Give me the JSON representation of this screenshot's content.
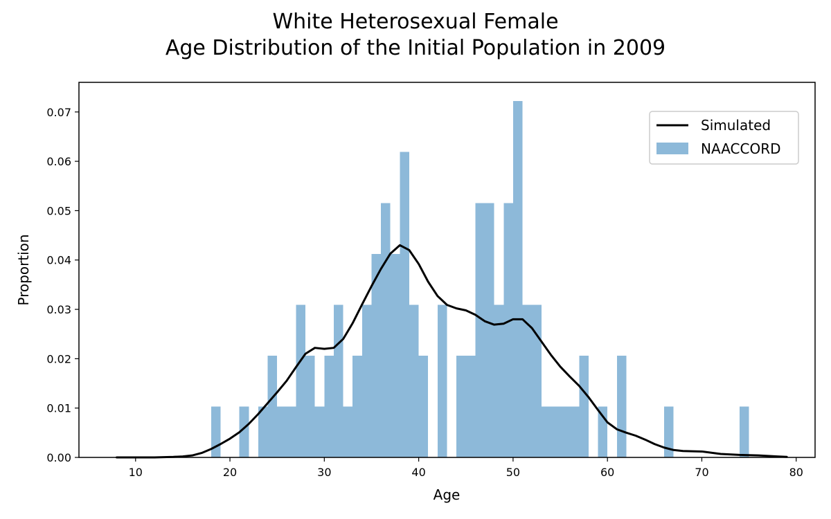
{
  "chart_data": {
    "type": "bar",
    "title": "White Heterosexual Female",
    "subtitle": "Age Distribution of the Initial Population in 2009",
    "xlabel": "Age",
    "ylabel": "Proportion",
    "xlim": [
      4,
      82
    ],
    "ylim": [
      0,
      0.076
    ],
    "xticks": [
      10,
      20,
      30,
      40,
      50,
      60,
      70,
      80
    ],
    "yticks": [
      0.0,
      0.01,
      0.02,
      0.03,
      0.04,
      0.05,
      0.06,
      0.07
    ],
    "xtick_labels": [
      "10",
      "20",
      "30",
      "40",
      "50",
      "60",
      "70",
      "80"
    ],
    "ytick_labels": [
      "0.00",
      "0.01",
      "0.02",
      "0.03",
      "0.04",
      "0.05",
      "0.06",
      "0.07"
    ],
    "grid": false,
    "legend_position": "top-right",
    "series": [
      {
        "name": "NAACCORD",
        "type": "histogram",
        "color": "#8db9d9",
        "bin_width": 1,
        "bins": [
          [
            18,
            0.0103
          ],
          [
            21,
            0.0103
          ],
          [
            23,
            0.0103
          ],
          [
            24,
            0.0206
          ],
          [
            25,
            0.0103
          ],
          [
            26,
            0.0103
          ],
          [
            27,
            0.0309
          ],
          [
            28,
            0.0206
          ],
          [
            29,
            0.0103
          ],
          [
            30,
            0.0206
          ],
          [
            31,
            0.0309
          ],
          [
            32,
            0.0103
          ],
          [
            33,
            0.0206
          ],
          [
            34,
            0.0309
          ],
          [
            35,
            0.0412
          ],
          [
            36,
            0.0515
          ],
          [
            37,
            0.0412
          ],
          [
            38,
            0.0619
          ],
          [
            39,
            0.0309
          ],
          [
            40,
            0.0206
          ],
          [
            42,
            0.0309
          ],
          [
            44,
            0.0206
          ],
          [
            45,
            0.0206
          ],
          [
            46,
            0.0515
          ],
          [
            47,
            0.0515
          ],
          [
            48,
            0.0309
          ],
          [
            49,
            0.0515
          ],
          [
            50,
            0.0722
          ],
          [
            51,
            0.0309
          ],
          [
            52,
            0.0309
          ],
          [
            53,
            0.0103
          ],
          [
            54,
            0.0103
          ],
          [
            55,
            0.0103
          ],
          [
            56,
            0.0103
          ],
          [
            57,
            0.0206
          ],
          [
            59,
            0.0103
          ],
          [
            61,
            0.0206
          ],
          [
            66,
            0.0103
          ],
          [
            74,
            0.0103
          ]
        ]
      },
      {
        "name": "Simulated",
        "type": "line",
        "color": "#000000",
        "points": [
          [
            8,
            0.0
          ],
          [
            10,
            0.0
          ],
          [
            12,
            0.0
          ],
          [
            14,
            0.0001
          ],
          [
            15,
            0.0002
          ],
          [
            16,
            0.0004
          ],
          [
            17,
            0.0009
          ],
          [
            18,
            0.0017
          ],
          [
            19,
            0.0027
          ],
          [
            20,
            0.0038
          ],
          [
            21,
            0.0051
          ],
          [
            22,
            0.0068
          ],
          [
            23,
            0.0088
          ],
          [
            24,
            0.011
          ],
          [
            25,
            0.0132
          ],
          [
            26,
            0.0155
          ],
          [
            27,
            0.0183
          ],
          [
            28,
            0.021
          ],
          [
            29,
            0.0222
          ],
          [
            30,
            0.022
          ],
          [
            31,
            0.0222
          ],
          [
            32,
            0.024
          ],
          [
            33,
            0.0272
          ],
          [
            34,
            0.031
          ],
          [
            35,
            0.0347
          ],
          [
            36,
            0.0382
          ],
          [
            37,
            0.0413
          ],
          [
            38,
            0.043
          ],
          [
            39,
            0.042
          ],
          [
            40,
            0.0392
          ],
          [
            41,
            0.0356
          ],
          [
            42,
            0.0327
          ],
          [
            43,
            0.0309
          ],
          [
            44,
            0.0302
          ],
          [
            45,
            0.0298
          ],
          [
            46,
            0.0289
          ],
          [
            47,
            0.0276
          ],
          [
            48,
            0.0269
          ],
          [
            49,
            0.0271
          ],
          [
            50,
            0.028
          ],
          [
            51,
            0.028
          ],
          [
            52,
            0.0262
          ],
          [
            53,
            0.0235
          ],
          [
            54,
            0.0208
          ],
          [
            55,
            0.0184
          ],
          [
            56,
            0.0164
          ],
          [
            57,
            0.0145
          ],
          [
            58,
            0.0122
          ],
          [
            59,
            0.0096
          ],
          [
            60,
            0.0071
          ],
          [
            61,
            0.0057
          ],
          [
            62,
            0.005
          ],
          [
            63,
            0.0044
          ],
          [
            64,
            0.0036
          ],
          [
            65,
            0.0027
          ],
          [
            66,
            0.002
          ],
          [
            67,
            0.0015
          ],
          [
            68,
            0.0013
          ],
          [
            70,
            0.0012
          ],
          [
            72,
            0.0007
          ],
          [
            74,
            0.0005
          ],
          [
            76,
            0.0004
          ],
          [
            78,
            0.0002
          ],
          [
            79,
            0.0001
          ]
        ]
      }
    ]
  }
}
